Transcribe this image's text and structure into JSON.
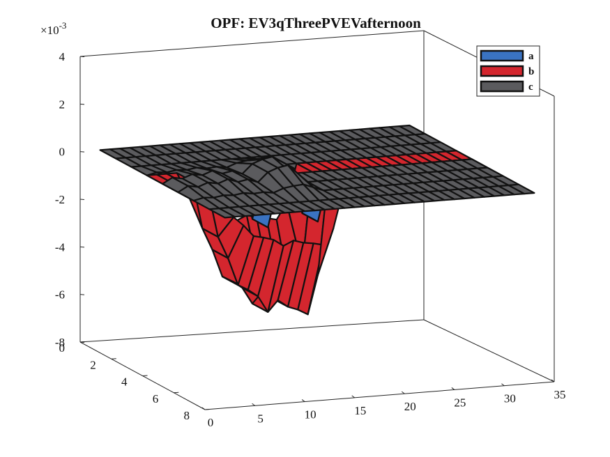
{
  "chart_data": {
    "type": "surface3d",
    "title": "OPF: EV3qThreePVEVafternoon",
    "zlabel_multiplier": "×10",
    "zlabel_exponent": "-3",
    "xlabel": "",
    "ylabel": "",
    "zlabel": "",
    "x_ticks": [
      0,
      5,
      10,
      15,
      20,
      25,
      30,
      35
    ],
    "y_ticks": [
      0,
      2,
      4,
      6,
      8
    ],
    "z_ticks": [
      4,
      2,
      0,
      -2,
      -4,
      -6,
      -8
    ],
    "xlim": [
      0,
      35
    ],
    "ylim": [
      0,
      8
    ],
    "zlim": [
      -8,
      4
    ],
    "grid": false,
    "legend_position": "top-right",
    "series": [
      {
        "name": "a",
        "color": "#3a73c2",
        "description": "phase a — near zero except small dips around x≈11 and x≈16",
        "spikes": [
          {
            "x": 11,
            "value": -2.3
          },
          {
            "x": 16,
            "value": -2.2
          }
        ]
      },
      {
        "name": "b",
        "color": "#d4262e",
        "description": "phase b — deep negative troughs between x≈6 and x≈18",
        "spikes": [
          {
            "x": 6,
            "value": -2.6
          },
          {
            "x": 7,
            "value": -3.8
          },
          {
            "x": 8,
            "value": -5.3
          },
          {
            "x": 9,
            "value": -5.6
          },
          {
            "x": 10,
            "value": -6.0
          },
          {
            "x": 11,
            "value": -6.9
          },
          {
            "x": 12,
            "value": -6.3
          },
          {
            "x": 13,
            "value": -6.7
          },
          {
            "x": 14,
            "value": -6.9
          },
          {
            "x": 15,
            "value": -7.2
          },
          {
            "x": 16,
            "value": -5.1
          }
        ]
      },
      {
        "name": "c",
        "color": "#5b5b5e",
        "description": "phase c — mostly flat at 0 with positive peaks up to ≈1",
        "spikes": [
          {
            "x": 3,
            "value": 0.3
          },
          {
            "x": 4,
            "value": 0.2
          },
          {
            "x": 5,
            "value": 0.4
          },
          {
            "x": 6,
            "value": 0.3
          },
          {
            "x": 7,
            "value": 0.5
          },
          {
            "x": 8,
            "value": 0.3
          },
          {
            "x": 9,
            "value": 0.4
          },
          {
            "x": 10,
            "value": 0.2
          },
          {
            "x": 11,
            "value": 0.7
          },
          {
            "x": 12,
            "value": 0.9
          },
          {
            "x": 13,
            "value": 1.0
          },
          {
            "x": 14,
            "value": 0.5
          }
        ]
      }
    ]
  }
}
